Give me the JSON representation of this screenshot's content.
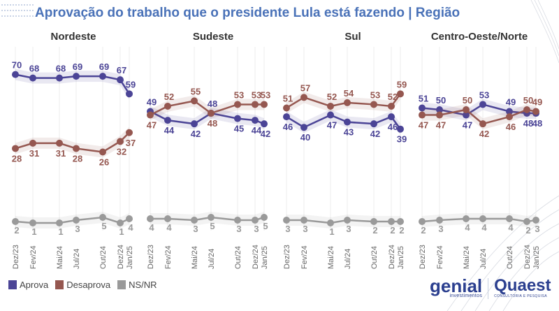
{
  "title": "Aprovação do trabalho que o presidente Lula está fazendo | Região",
  "legend": [
    {
      "label": "Aprova",
      "color": "#4b4496"
    },
    {
      "label": "Desaprova",
      "color": "#955750"
    },
    {
      "label": "NS/NR",
      "color": "#9a9a9a"
    }
  ],
  "logos": {
    "genial": "genial",
    "genial_sub": "investimentos",
    "quaest": "Quaest",
    "quaest_sub": "CONSULTORIA E PESQUISA"
  },
  "chart_data": {
    "type": "line",
    "x": [
      "Dez/23",
      "Fev/24",
      "Mai/24",
      "Jul/24",
      "Out/24",
      "Dez/24",
      "Jan/25"
    ],
    "panels": [
      {
        "title": "Nordeste",
        "series": [
          {
            "name": "Aprova",
            "values": [
              70,
              68,
              68,
              69,
              69,
              67,
              59
            ]
          },
          {
            "name": "Desaprova",
            "values": [
              28,
              31,
              31,
              28,
              26,
              32,
              37
            ]
          },
          {
            "name": "NS/NR",
            "values": [
              2,
              1,
              1,
              3,
              5,
              1,
              4
            ]
          }
        ]
      },
      {
        "title": "Sudeste",
        "series": [
          {
            "name": "Aprova",
            "values": [
              49,
              44,
              42,
              48,
              45,
              44,
              42
            ]
          },
          {
            "name": "Desaprova",
            "values": [
              47,
              52,
              55,
              48,
              53,
              53,
              53
            ]
          },
          {
            "name": "NS/NR",
            "values": [
              4,
              4,
              3,
              5,
              3,
              3,
              5
            ]
          }
        ]
      },
      {
        "title": "Sul",
        "series": [
          {
            "name": "Aprova",
            "values": [
              46,
              40,
              47,
              43,
              42,
              46,
              39
            ]
          },
          {
            "name": "Desaprova",
            "values": [
              51,
              57,
              52,
              54,
              53,
              52,
              59
            ]
          },
          {
            "name": "NS/NR",
            "values": [
              3,
              3,
              1,
              3,
              2,
              2,
              2
            ]
          }
        ]
      },
      {
        "title": "Centro-Oeste/Norte",
        "series": [
          {
            "name": "Aprova",
            "values": [
              51,
              50,
              47,
              53,
              49,
              48,
              48
            ]
          },
          {
            "name": "Desaprova",
            "values": [
              47,
              47,
              50,
              42,
              46,
              50,
              49
            ]
          },
          {
            "name": "NS/NR",
            "values": [
              2,
              3,
              4,
              4,
              4,
              2,
              3
            ]
          }
        ]
      }
    ],
    "colors": {
      "Aprova": "#4b4496",
      "Desaprova": "#955750",
      "NS/NR": "#9a9a9a"
    },
    "ylim": [
      0,
      75
    ],
    "grid": "vertical",
    "legend_position": "bottom-left"
  }
}
